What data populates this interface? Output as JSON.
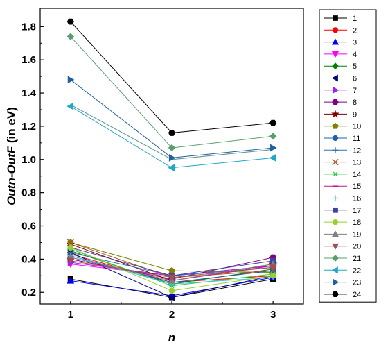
{
  "chart_data": {
    "type": "line",
    "x": [
      1,
      2,
      3
    ],
    "xticks": [
      "1",
      "2",
      "3"
    ],
    "xlim": [
      0.7,
      3.3
    ],
    "ylim": [
      0.13,
      1.91
    ],
    "yticks": [
      "0.2",
      "0.4",
      "0.6",
      "0.8",
      "1.0",
      "1.2",
      "1.4",
      "1.6",
      "1.8"
    ],
    "xlabel": "n",
    "ylabel": {
      "part1": "Outn",
      "part2": "-",
      "part3": "OutF",
      "part4": " (in eV)"
    },
    "legend_position": "right",
    "series": [
      {
        "name": "1",
        "values": [
          0.28,
          0.17,
          0.28
        ],
        "color": "#000000",
        "marker": "square"
      },
      {
        "name": "2",
        "values": [
          0.43,
          0.26,
          0.3
        ],
        "color": "#ff0000",
        "marker": "circle"
      },
      {
        "name": "3",
        "values": [
          0.27,
          0.18,
          0.29
        ],
        "color": "#0000ff",
        "marker": "triangle-up"
      },
      {
        "name": "4",
        "values": [
          0.37,
          0.3,
          0.36
        ],
        "color": "#ff00ff",
        "marker": "triangle-down"
      },
      {
        "name": "5",
        "values": [
          0.45,
          0.25,
          0.34
        ],
        "color": "#008000",
        "marker": "diamond"
      },
      {
        "name": "6",
        "values": [
          0.44,
          0.17,
          0.3
        ],
        "color": "#000080",
        "marker": "triangle-left"
      },
      {
        "name": "7",
        "values": [
          0.38,
          0.3,
          0.36
        ],
        "color": "#a020f0",
        "marker": "triangle-right"
      },
      {
        "name": "8",
        "values": [
          0.4,
          0.28,
          0.41
        ],
        "color": "#800080",
        "marker": "hexagon"
      },
      {
        "name": "9",
        "values": [
          0.49,
          0.27,
          0.37
        ],
        "color": "#800000",
        "marker": "star"
      },
      {
        "name": "10",
        "values": [
          0.5,
          0.33,
          0.32
        ],
        "color": "#808000",
        "marker": "pentagon"
      },
      {
        "name": "11",
        "values": [
          0.42,
          0.26,
          0.33
        ],
        "color": "#1f5fa8",
        "marker": "circle"
      },
      {
        "name": "12",
        "values": [
          0.44,
          0.3,
          0.35
        ],
        "color": "#3070b0",
        "marker": "plus"
      },
      {
        "name": "13",
        "values": [
          0.5,
          0.29,
          0.33
        ],
        "color": "#b05020",
        "marker": "x"
      },
      {
        "name": "14",
        "values": [
          0.46,
          0.24,
          0.31
        ],
        "color": "#2ecc40",
        "marker": "asterisk"
      },
      {
        "name": "15",
        "values": [
          0.41,
          0.27,
          0.36
        ],
        "color": "#c71585",
        "marker": "dash"
      },
      {
        "name": "16",
        "values": [
          0.42,
          0.25,
          0.29
        ],
        "color": "#40c0e0",
        "marker": "plus"
      },
      {
        "name": "17",
        "values": [
          0.47,
          0.3,
          0.39
        ],
        "color": "#4040a0",
        "marker": "square"
      },
      {
        "name": "18",
        "values": [
          0.47,
          0.21,
          0.3
        ],
        "color": "#9acd32",
        "marker": "circle"
      },
      {
        "name": "19",
        "values": [
          0.41,
          0.27,
          0.37
        ],
        "color": "#808080",
        "marker": "triangle-up"
      },
      {
        "name": "20",
        "values": [
          0.39,
          0.29,
          0.35
        ],
        "color": "#a05050",
        "marker": "triangle-down"
      },
      {
        "name": "21",
        "values": [
          1.74,
          1.07,
          1.14
        ],
        "color": "#5a9e6f",
        "marker": "diamond"
      },
      {
        "name": "22",
        "values": [
          1.32,
          0.95,
          1.01
        ],
        "color": "#1fa8c8",
        "marker": "triangle-left"
      },
      {
        "name": "23",
        "values": [
          1.48,
          1.01,
          1.07
        ],
        "color": "#2060a0",
        "marker": "triangle-right"
      },
      {
        "name": "24",
        "values": [
          1.83,
          1.16,
          1.22
        ],
        "color": "#000000",
        "marker": "hexagon"
      }
    ],
    "extra_lines": [
      {
        "values": [
          1.33,
          1.0,
          1.06
        ],
        "color": "#b08070"
      },
      {
        "values": [
          1.33,
          1.0,
          1.06
        ],
        "color": "#5f9ea0"
      }
    ]
  }
}
